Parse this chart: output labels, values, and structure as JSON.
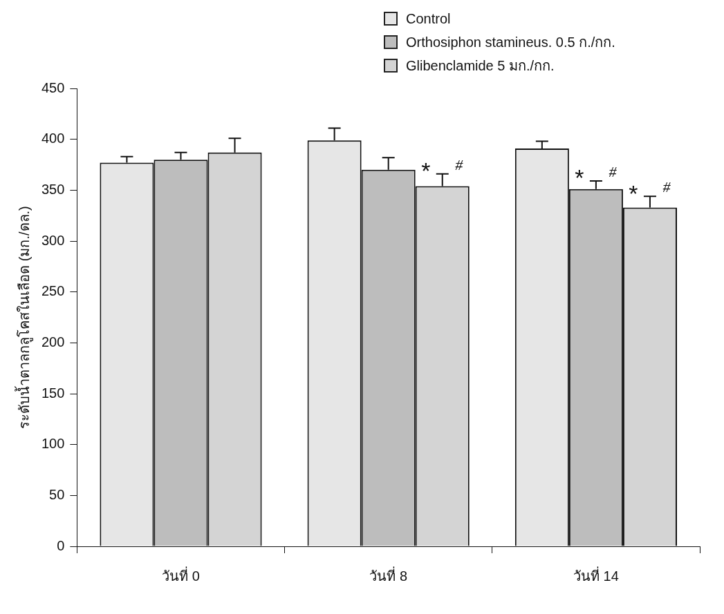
{
  "chart_data": {
    "type": "bar",
    "ylabel": "ระดับน้ำตาลกลูโคสในเลือด (มก./ดล.)",
    "categories": [
      "วันที่ 0",
      "วันที่ 8",
      "วันที่ 14"
    ],
    "series": [
      {
        "name": "Control",
        "color": "#e6e6e6",
        "values": [
          377,
          399,
          391
        ],
        "errors": [
          6,
          12,
          7
        ]
      },
      {
        "name": "Orthosiphon stamineus. 0.5 ก./กก.",
        "color": "#bdbdbd",
        "values": [
          380,
          370,
          351
        ],
        "errors": [
          7,
          12,
          8
        ],
        "value_labels": [
          null,
          null,
          "* #"
        ]
      },
      {
        "name": "Glibenclamide 5 มก./กก.",
        "color": "#d4d4d4",
        "values": [
          387,
          354,
          333
        ],
        "errors": [
          14,
          12,
          11
        ],
        "value_labels": [
          null,
          "* #",
          "* #"
        ]
      }
    ],
    "ylim": [
      0,
      450
    ],
    "yticks": [
      0,
      50,
      100,
      150,
      200,
      250,
      300,
      350,
      400,
      450
    ],
    "grid": false,
    "legend": "top right"
  }
}
